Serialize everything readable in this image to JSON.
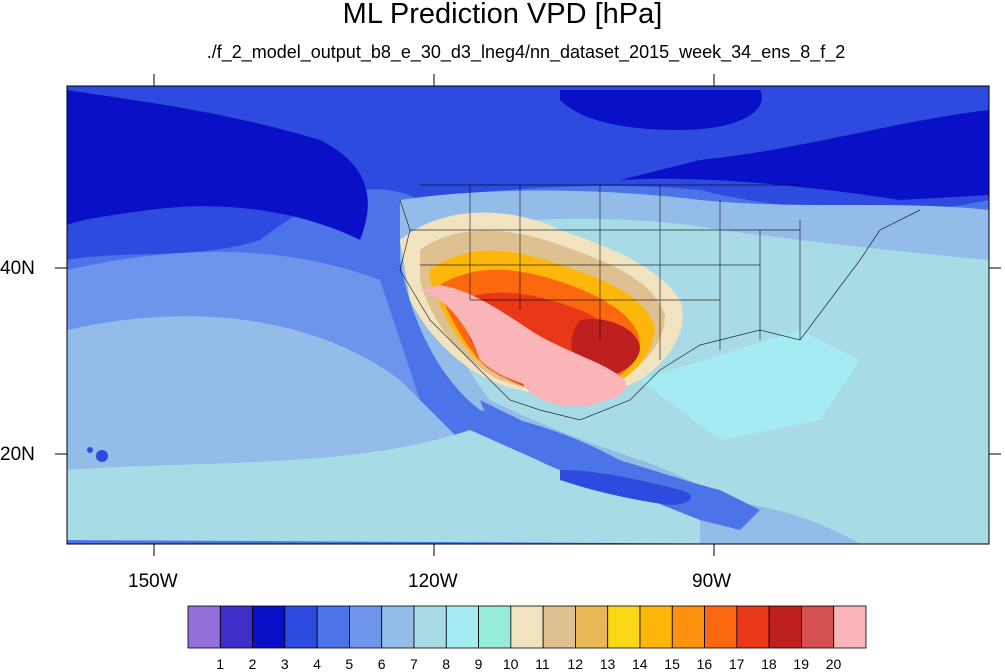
{
  "title": "ML Prediction VPD [hPa]",
  "subtitle": "./f_2_model_output_b8_e_30_d3_lneg4/nn_dataset_2015_week_34_ens_8_f_2",
  "lat_labels": [
    "40N",
    "20N"
  ],
  "lon_labels": [
    "150W",
    "120W",
    "90W"
  ],
  "colorbar": {
    "labels": [
      "1",
      "2",
      "3",
      "4",
      "5",
      "6",
      "7",
      "8",
      "9",
      "10",
      "11",
      "12",
      "13",
      "14",
      "15",
      "16",
      "17",
      "18",
      "19",
      "20"
    ],
    "colors": [
      "#9370db",
      "#3f2fc8",
      "#0a10c8",
      "#2d4bdf",
      "#4a74e8",
      "#6f94ec",
      "#93bde8",
      "#a9dbe6",
      "#a5ecf2",
      "#97ecd8",
      "#f2e3c0",
      "#dfc090",
      "#e8b856",
      "#fad818",
      "#fdb70a",
      "#fd9210",
      "#fc6810",
      "#e93818",
      "#be2020",
      "#d45050",
      "#f9b5b8"
    ]
  }
}
